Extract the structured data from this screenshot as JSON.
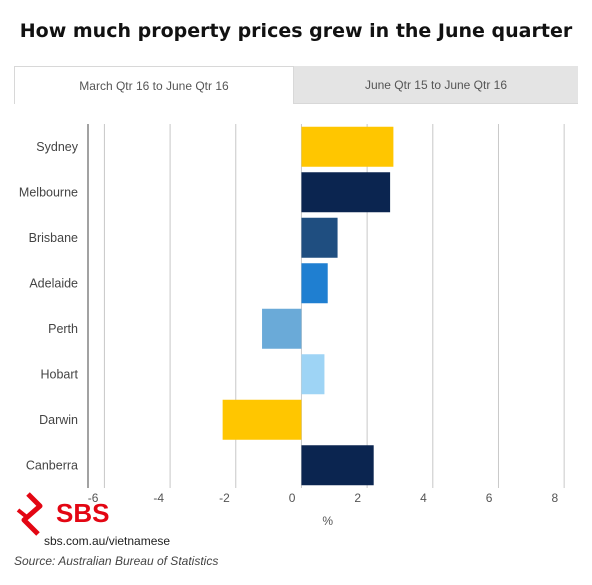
{
  "title": "How much property prices grew in the June quarter",
  "tabs": [
    {
      "label": "March Qtr 16 to June Qtr 16",
      "active": true
    },
    {
      "label": "June Qtr 15 to June Qtr 16",
      "active": false
    }
  ],
  "logo": {
    "text": "SBS",
    "color": "#e30613"
  },
  "site_url": "sbs.com.au/vietnamese",
  "source": "Source: Australian Bureau of Statistics",
  "chart_data": {
    "type": "bar",
    "orientation": "horizontal",
    "categories": [
      "Sydney",
      "Melbourne",
      "Brisbane",
      "Adelaide",
      "Perth",
      "Hobart",
      "Darwin",
      "Canberra"
    ],
    "values": [
      2.8,
      2.7,
      1.1,
      0.8,
      -1.2,
      0.7,
      -2.4,
      2.2
    ],
    "colors": [
      "#ffc600",
      "#0b2550",
      "#1f4e80",
      "#1f7fd1",
      "#6aaad8",
      "#9ed4f5",
      "#ffc600",
      "#0b2550"
    ],
    "xticks": [
      -6,
      -4,
      -2,
      0,
      2,
      4,
      6,
      8
    ],
    "xlim": [
      -6.5,
      8.3
    ],
    "xlabel": "%",
    "ylabel": "",
    "grid": true
  }
}
